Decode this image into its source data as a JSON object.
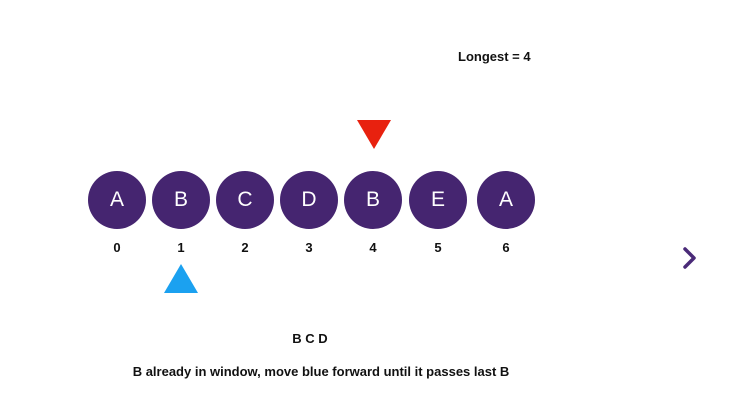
{
  "longest_label": "Longest = 4",
  "cells": [
    {
      "letter": "A",
      "index": "0"
    },
    {
      "letter": "B",
      "index": "1"
    },
    {
      "letter": "C",
      "index": "2"
    },
    {
      "letter": "D",
      "index": "3"
    },
    {
      "letter": "B",
      "index": "4"
    },
    {
      "letter": "E",
      "index": "5"
    },
    {
      "letter": "A",
      "index": "6"
    }
  ],
  "red_pointer_index": 4,
  "blue_pointer_index": 1,
  "window_text": "B C D",
  "caption": "B already in window, move blue forward until it passes last B",
  "colors": {
    "cell_fill": "#452570",
    "red_pointer": "#e8210f",
    "blue_pointer": "#1ba1f0",
    "nav_arrow": "#4a2a78"
  },
  "icons": {
    "next": "chevron-right-icon"
  }
}
